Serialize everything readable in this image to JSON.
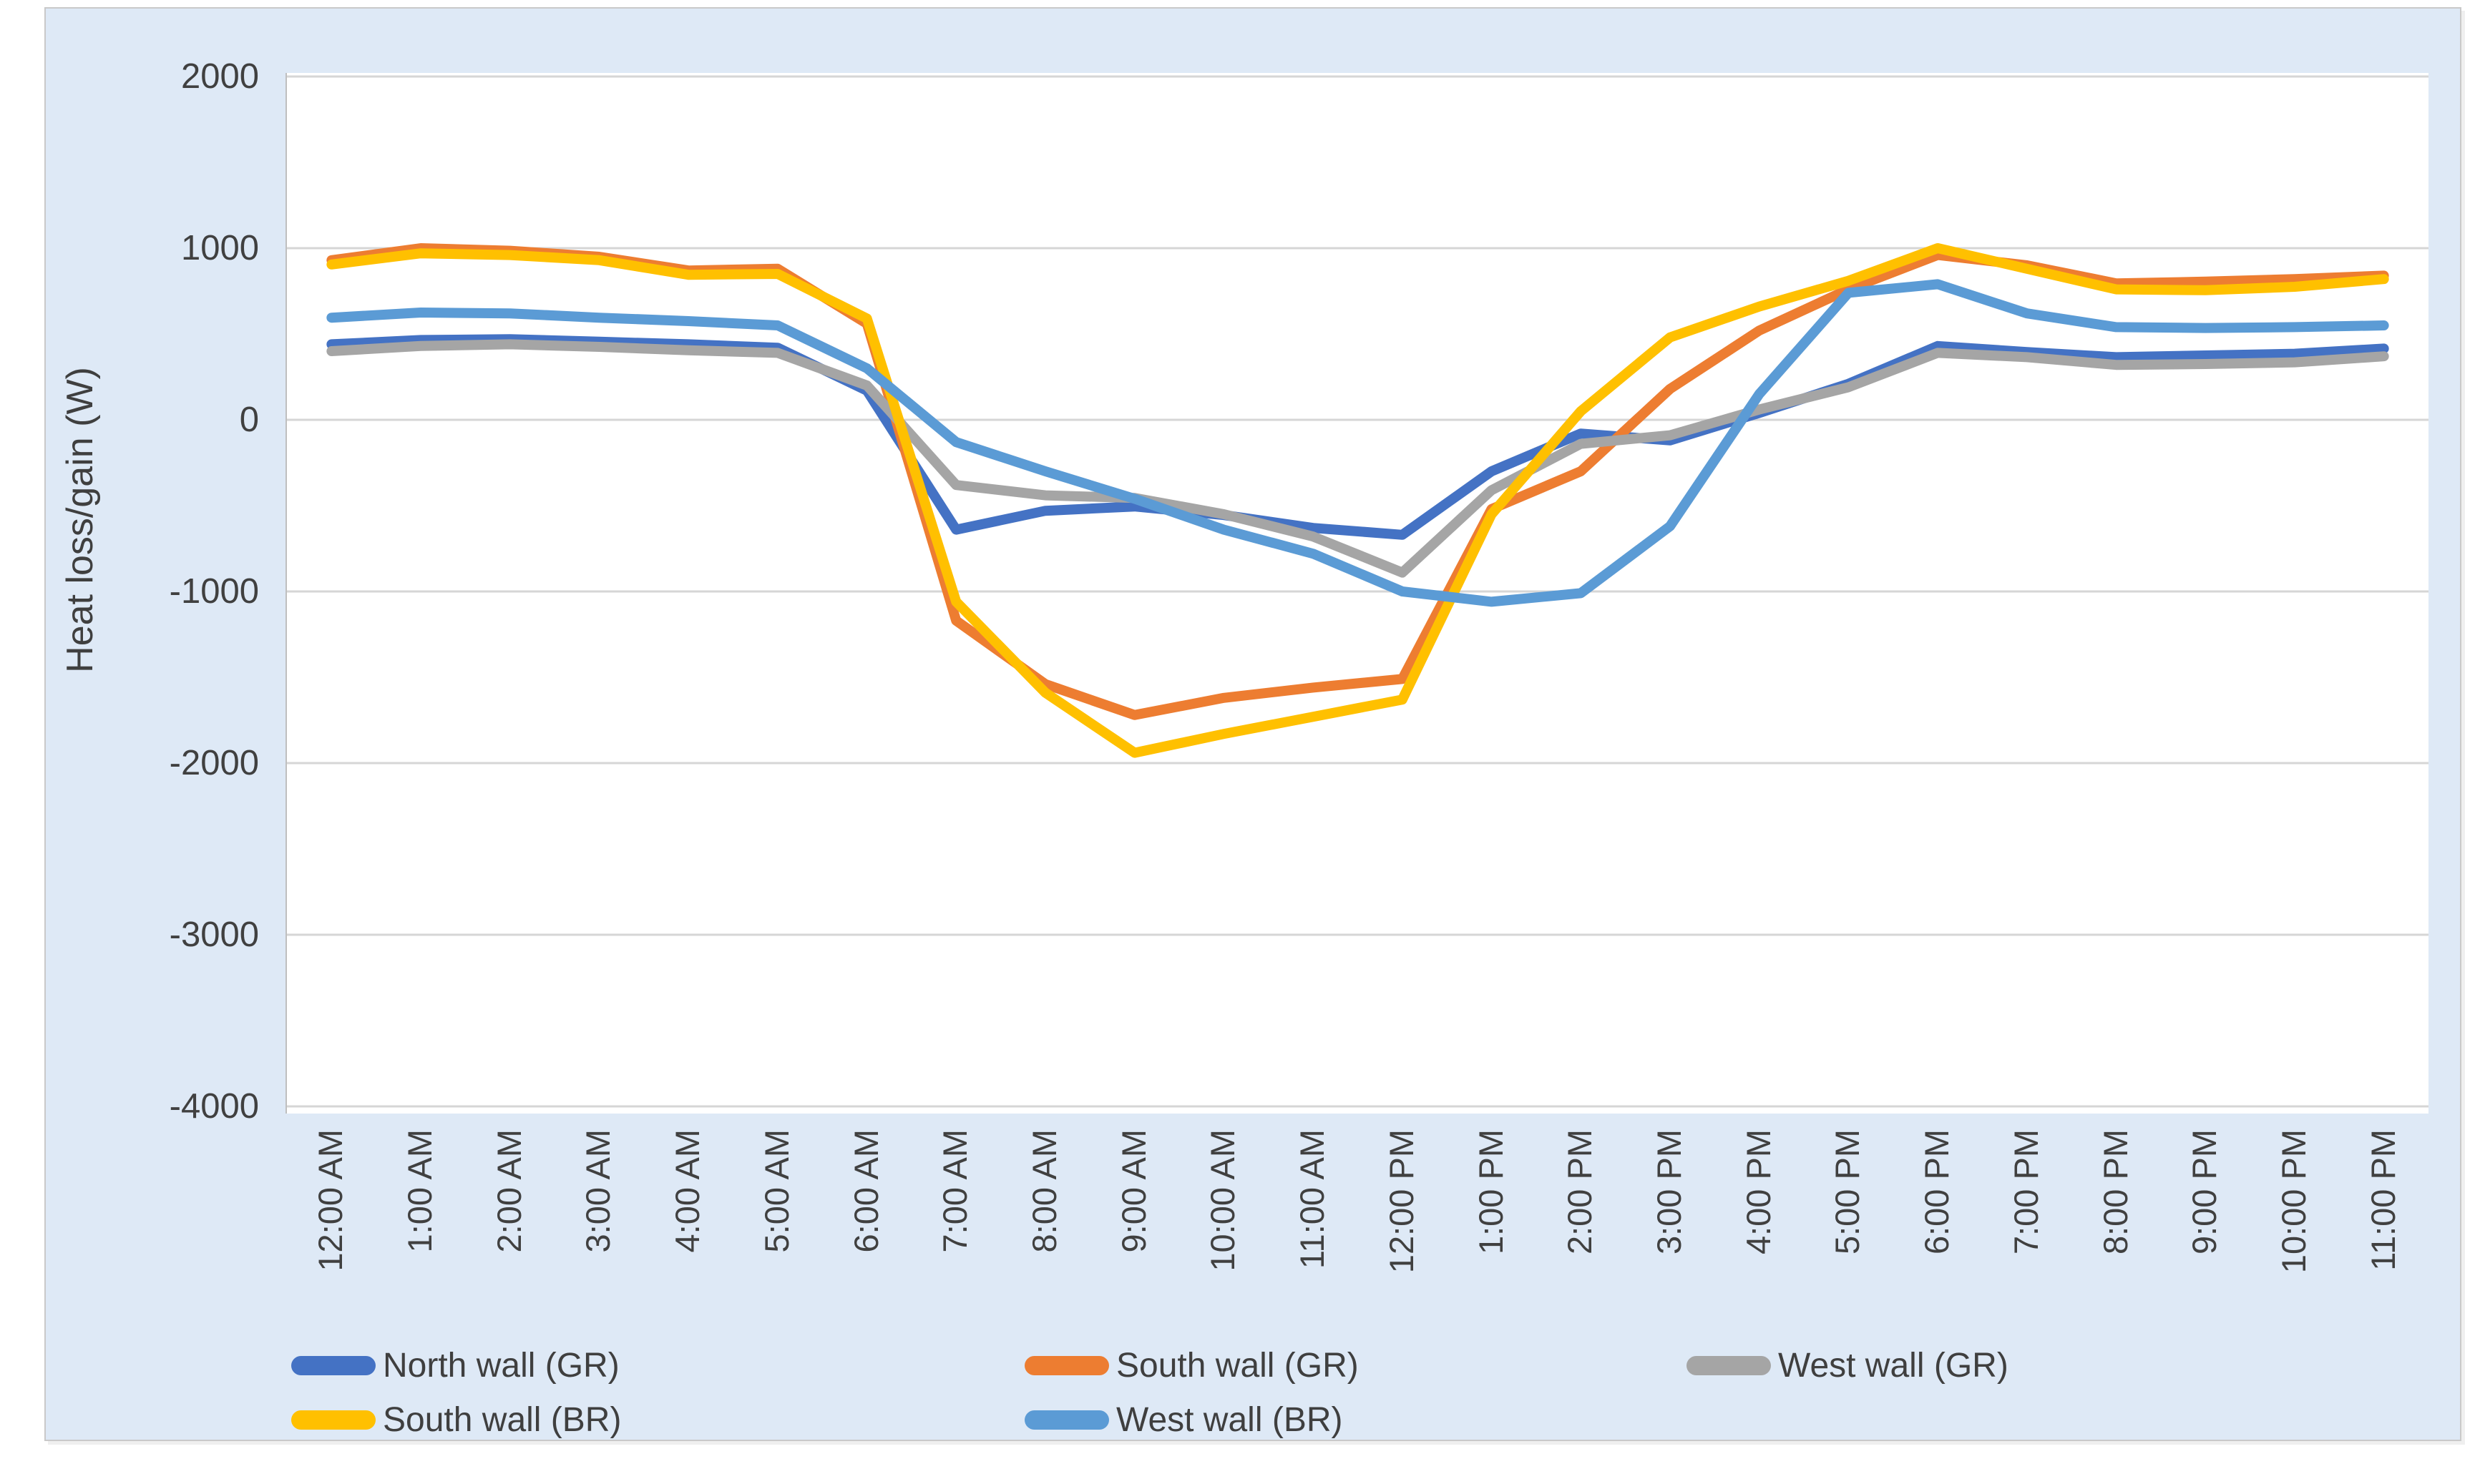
{
  "chart_data": {
    "type": "line",
    "title": "",
    "xlabel": "",
    "ylabel": "Heat loss/gain (W)",
    "ylim": [
      -4000,
      2000
    ],
    "yticks": [
      2000,
      1000,
      0,
      -1000,
      -2000,
      -3000,
      -4000
    ],
    "grid": "horizontal-only",
    "gridline_color": "#D6D6D6",
    "panel_bg": "#DEE9F6",
    "plot_bg": "#FFFFFF",
    "text_color": "#404040",
    "legend_position": "bottom",
    "categories": [
      "12:00 AM",
      "1:00 AM",
      "2:00 AM",
      "3:00 AM",
      "4:00 AM",
      "5:00 AM",
      "6:00 AM",
      "7:00 AM",
      "8:00 AM",
      "9:00 AM",
      "10:00 AM",
      "11:00 AM",
      "12:00 PM",
      "1:00 PM",
      "2:00 PM",
      "3:00 PM",
      "4:00 PM",
      "5:00 PM",
      "6:00 PM",
      "7:00 PM",
      "8:00 PM",
      "9:00 PM",
      "10:00 PM",
      "11:00 PM"
    ],
    "series": [
      {
        "name": "North wall (GR)",
        "color": "#4472C4",
        "values": [
          440,
          465,
          470,
          455,
          440,
          420,
          170,
          -640,
          -530,
          -505,
          -555,
          -630,
          -670,
          -300,
          -80,
          -120,
          40,
          210,
          430,
          395,
          365,
          375,
          385,
          415
        ]
      },
      {
        "name": "South wall (GR)",
        "color": "#ED7D31",
        "values": [
          930,
          1000,
          985,
          950,
          870,
          880,
          560,
          -1170,
          -1540,
          -1720,
          -1620,
          -1560,
          -1510,
          -520,
          -300,
          180,
          520,
          760,
          960,
          900,
          795,
          805,
          820,
          840
        ]
      },
      {
        "name": "West wall (GR)",
        "color": "#A5A5A5",
        "values": [
          400,
          430,
          440,
          425,
          405,
          390,
          200,
          -380,
          -440,
          -455,
          -550,
          -680,
          -890,
          -410,
          -140,
          -90,
          60,
          190,
          390,
          365,
          320,
          325,
          335,
          370
        ]
      },
      {
        "name": "South wall (BR)",
        "color": "#FFC000",
        "values": [
          905,
          970,
          960,
          930,
          845,
          850,
          590,
          -1060,
          -1590,
          -1940,
          -1830,
          -1730,
          -1630,
          -550,
          50,
          480,
          660,
          810,
          1000,
          880,
          760,
          755,
          775,
          820
        ]
      },
      {
        "name": "West wall (BR)",
        "color": "#5B9BD5",
        "values": [
          595,
          625,
          620,
          595,
          575,
          550,
          300,
          -130,
          -300,
          -460,
          -640,
          -780,
          -1000,
          -1060,
          -1010,
          -620,
          150,
          740,
          790,
          620,
          540,
          535,
          540,
          550
        ]
      }
    ]
  }
}
